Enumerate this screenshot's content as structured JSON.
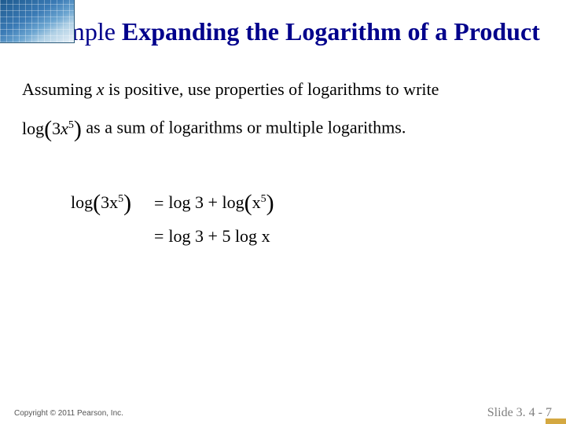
{
  "title": {
    "example_word": "Example",
    "rest": " Expanding the Logarithm of a Product",
    "color": "#00008b",
    "font_size": 32
  },
  "problem": {
    "line1_prefix": "Assuming ",
    "variable": "x",
    "line1_suffix": " is positive, use properties of logarithms to write",
    "line2_expr_prefix": "log",
    "line2_expr_inner": "3",
    "line2_expr_var": "x",
    "line2_expr_exp": "5",
    "line2_suffix": " as a sum of logarithms or multiple logarithms.",
    "font_size": 22
  },
  "solution": {
    "lhs_log": "log",
    "lhs_coef": "3",
    "lhs_var": "x",
    "lhs_exp": "5",
    "eq": "=",
    "rhs1_a": "log 3",
    "rhs1_plus": " + ",
    "rhs1_b_log": "log",
    "rhs1_b_var": "x",
    "rhs1_b_exp": "5",
    "rhs2": "log 3 + 5 log ",
    "rhs2_var": "x",
    "font_size": 22
  },
  "footer": {
    "copyright": "Copyright © 2011 Pearson, Inc.",
    "slide": "Slide 3. 4 - 7",
    "copyright_color": "#555555",
    "slide_color": "#808080"
  },
  "decoration": {
    "accent_color": "#d4a841",
    "corner_gradient_start": "#1e5a8e",
    "corner_gradient_end": "#e8f0f7"
  }
}
